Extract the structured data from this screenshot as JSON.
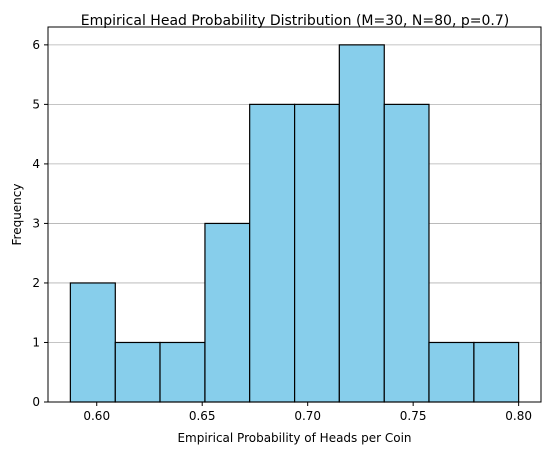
{
  "chart_data": {
    "type": "bar",
    "title": "Empirical Head Probability Distribution (M=30, N=80, p=0.7)",
    "xlabel": "Empirical Probability of Heads per Coin",
    "ylabel": "Frequency",
    "bins": [
      {
        "x0": 0.5875,
        "x1": 0.6088,
        "count": 2
      },
      {
        "x0": 0.6088,
        "x1": 0.63,
        "count": 1
      },
      {
        "x0": 0.63,
        "x1": 0.6513,
        "count": 1
      },
      {
        "x0": 0.6513,
        "x1": 0.6725,
        "count": 3
      },
      {
        "x0": 0.6725,
        "x1": 0.6938,
        "count": 5
      },
      {
        "x0": 0.6938,
        "x1": 0.715,
        "count": 5
      },
      {
        "x0": 0.715,
        "x1": 0.7363,
        "count": 6
      },
      {
        "x0": 0.7363,
        "x1": 0.7575,
        "count": 5
      },
      {
        "x0": 0.7575,
        "x1": 0.7788,
        "count": 1
      },
      {
        "x0": 0.7788,
        "x1": 0.8,
        "count": 1
      }
    ],
    "xlim": [
      0.5769,
      0.8106
    ],
    "ylim": [
      0,
      6.3
    ],
    "xticks": [
      0.6,
      0.65,
      0.7,
      0.75,
      0.8
    ],
    "xtick_labels": [
      "0.60",
      "0.65",
      "0.70",
      "0.75",
      "0.80"
    ],
    "yticks": [
      0,
      1,
      2,
      3,
      4,
      5,
      6
    ],
    "ytick_labels": [
      "0",
      "1",
      "2",
      "3",
      "4",
      "5",
      "6"
    ],
    "grid": "y-axis horizontal lines",
    "colors": {
      "bar_fill": "#87ceeb",
      "bar_edge": "#000000",
      "grid": "#b0b0b0"
    }
  }
}
